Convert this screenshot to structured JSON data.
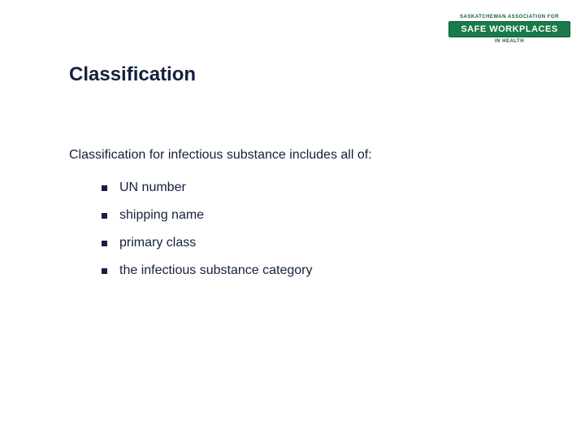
{
  "logo": {
    "top_text": "SASKATCHEWAN ASSOCIATION FOR",
    "main_text": "SAFE WORKPLACES",
    "bottom_text": "IN HEALTH",
    "badge_bg": "#1a7a4a",
    "badge_text_color": "#ffffff",
    "sub_text_color": "#1a5c3a"
  },
  "title": "Classification",
  "intro": "Classification for infectious substance includes all of:",
  "bullets": [
    "UN number",
    "shipping name",
    "primary class",
    "the infectious substance category"
  ],
  "colors": {
    "text": "#14213d",
    "background": "#ffffff"
  },
  "typography": {
    "title_fontsize": 24,
    "body_fontsize": 16,
    "font_family": "Verdana"
  }
}
